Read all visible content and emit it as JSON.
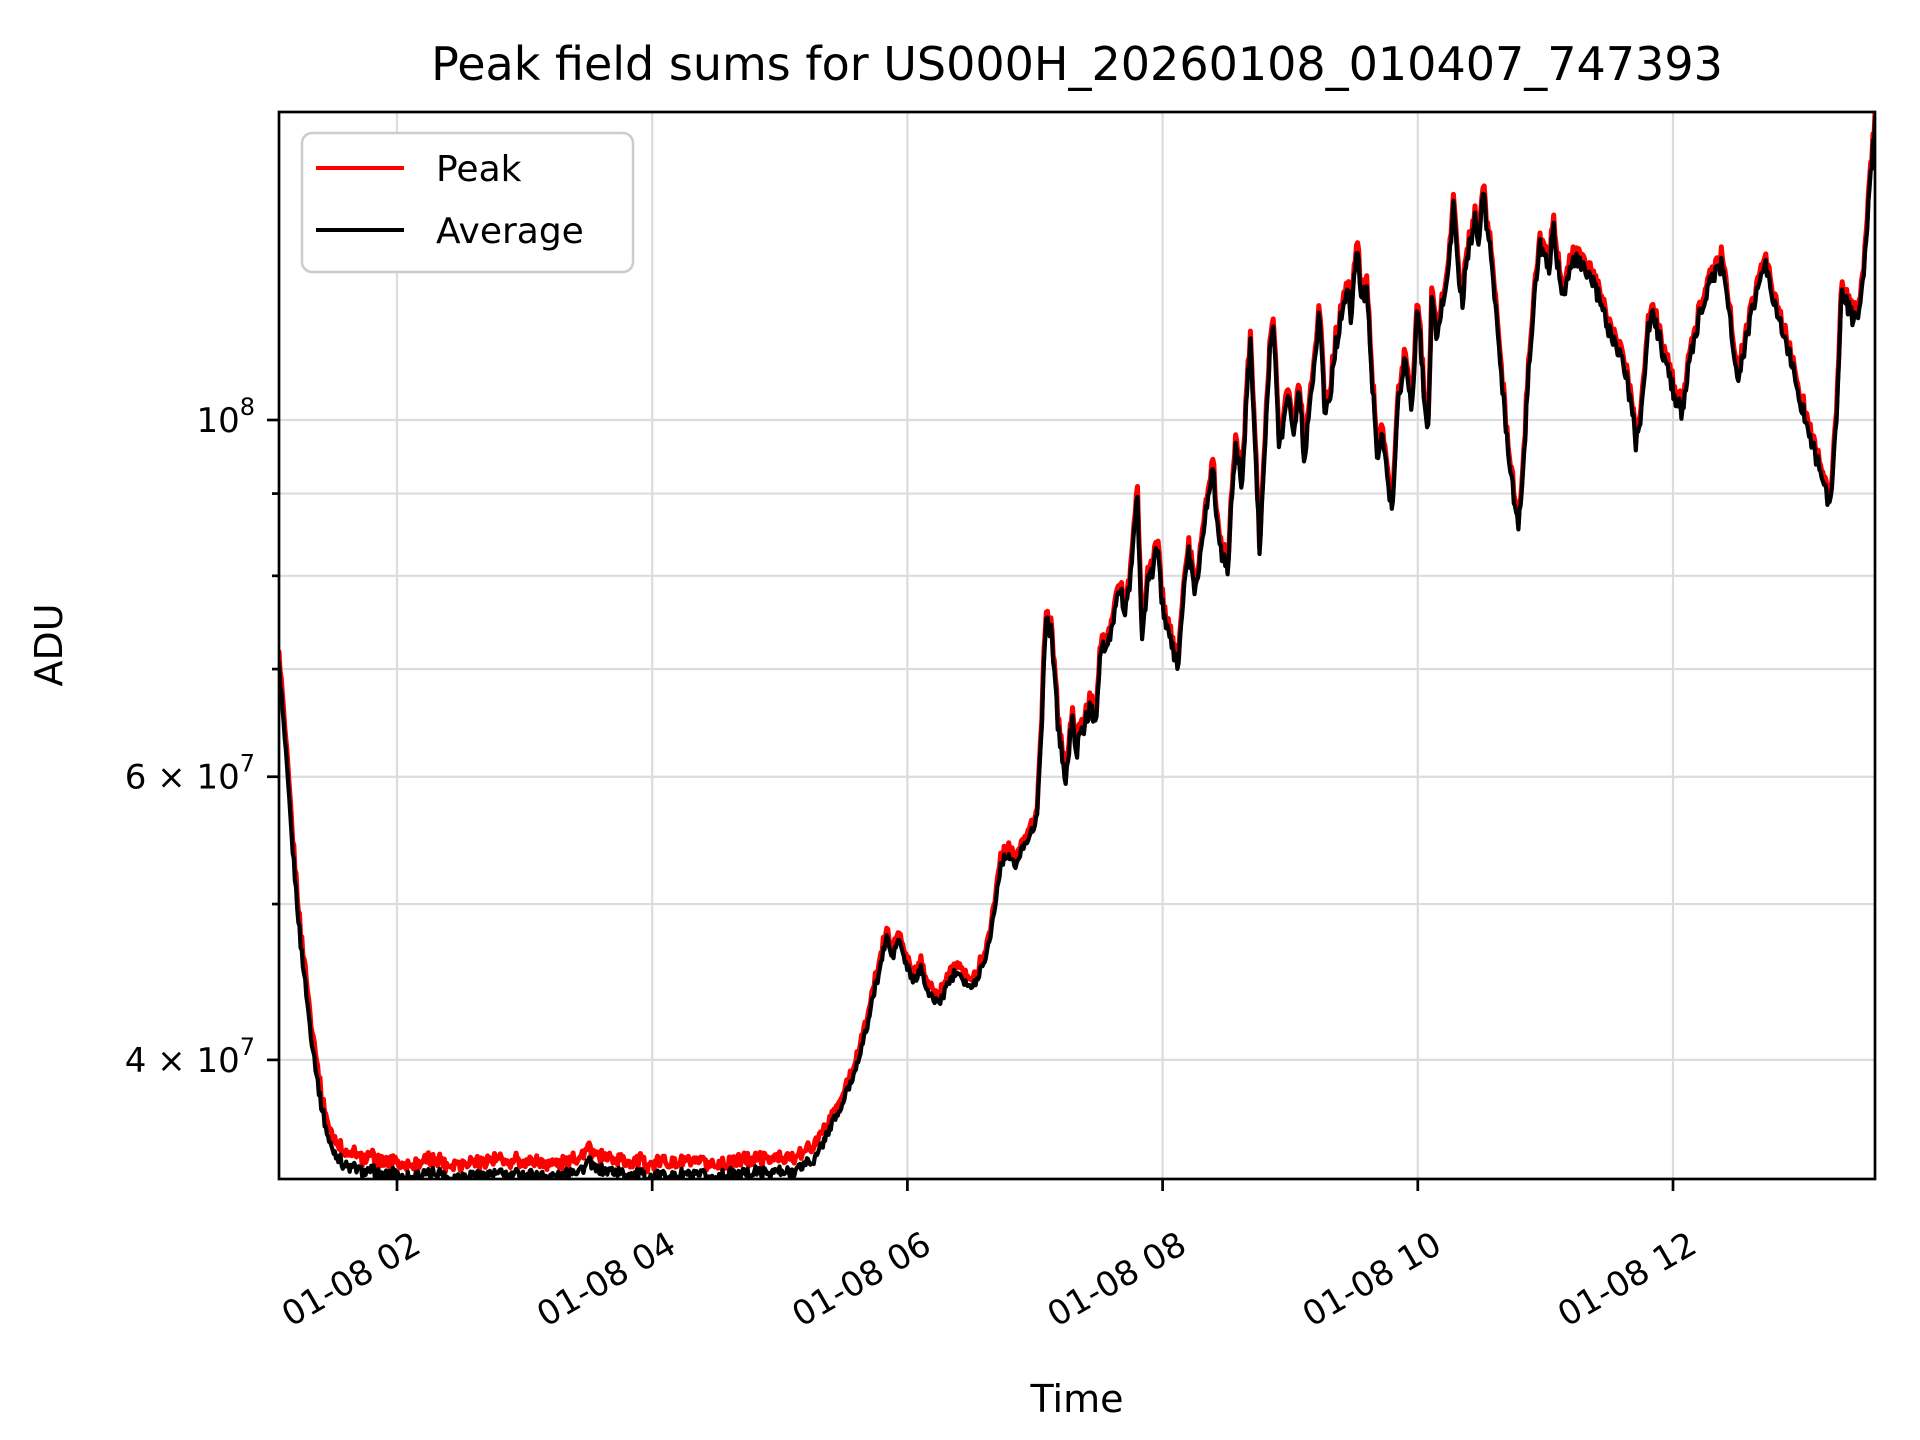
{
  "chart": {
    "title": "Peak field sums for US000H_20260108_010407_747393",
    "xlabel": "Time",
    "ylabel": "ADU",
    "colors": {
      "peak_line": "#ff0000",
      "average_line": "#000000",
      "grid": "#dcdcdc",
      "axes": "#000000",
      "legend_border": "#cccccc",
      "background": "#ffffff"
    },
    "legend": {
      "items": [
        {
          "label": "Peak",
          "color": "#ff0000"
        },
        {
          "label": "Average",
          "color": "#000000"
        }
      ]
    },
    "x_ticks": [
      {
        "t": 2,
        "label": "01-08 02"
      },
      {
        "t": 4,
        "label": "01-08 04"
      },
      {
        "t": 6,
        "label": "01-08 06"
      },
      {
        "t": 8,
        "label": "01-08 08"
      },
      {
        "t": 10,
        "label": "01-08 10"
      },
      {
        "t": 12,
        "label": "01-08 12"
      }
    ],
    "y_major_ticks": [
      {
        "v": 40000000,
        "base": "4 × 10",
        "exp": "7"
      },
      {
        "v": 60000000,
        "base": "6 × 10",
        "exp": "7"
      },
      {
        "v": 100000000,
        "base": "10",
        "exp": "8"
      }
    ],
    "y_minor_ticks": [
      50000000,
      70000000,
      80000000,
      90000000
    ]
  },
  "chart_data": {
    "type": "line",
    "title": "Peak field sums for US000H_20260108_010407_747393",
    "xlabel": "Time",
    "ylabel": "ADU",
    "yscale": "log",
    "xlim_hours": [
      1.075,
      13.585
    ],
    "ylim": [
      33700000,
      155000000
    ],
    "x_tick_hours": [
      2,
      4,
      6,
      8,
      10,
      12
    ],
    "x_tick_labels": [
      "01-08 02",
      "01-08 04",
      "01-08 06",
      "01-08 08",
      "01-08 10",
      "01-08 12"
    ],
    "grid": "both-y-major-x",
    "legend_position": "upper-left",
    "series": [
      {
        "name": "Peak",
        "color": "#ff0000",
        "relation": "average value plus roughly 1-3 percent, drawn beneath Average"
      },
      {
        "name": "Average",
        "color": "#000000",
        "units": "ADU, keypoint values are multiples of 1e7, t is hours on 01-08",
        "keypoints": [
          [
            1.075,
            7.05
          ],
          [
            1.12,
            6.35
          ],
          [
            1.18,
            5.45
          ],
          [
            1.25,
            4.7
          ],
          [
            1.32,
            4.2
          ],
          [
            1.4,
            3.78
          ],
          [
            1.48,
            3.55
          ],
          [
            1.58,
            3.46
          ],
          [
            1.7,
            3.43
          ],
          [
            1.9,
            3.41
          ],
          [
            2.1,
            3.4
          ],
          [
            2.3,
            3.41
          ],
          [
            2.5,
            3.4
          ],
          [
            2.7,
            3.41
          ],
          [
            2.9,
            3.4
          ],
          [
            3.1,
            3.41
          ],
          [
            3.3,
            3.41
          ],
          [
            3.5,
            3.46
          ],
          [
            3.6,
            3.43
          ],
          [
            3.8,
            3.4
          ],
          [
            4.0,
            3.4
          ],
          [
            4.25,
            3.41
          ],
          [
            4.5,
            3.4
          ],
          [
            4.75,
            3.41
          ],
          [
            5.0,
            3.42
          ],
          [
            5.15,
            3.44
          ],
          [
            5.28,
            3.5
          ],
          [
            5.38,
            3.6
          ],
          [
            5.48,
            3.74
          ],
          [
            5.58,
            3.92
          ],
          [
            5.68,
            4.18
          ],
          [
            5.78,
            4.55
          ],
          [
            5.84,
            4.77
          ],
          [
            5.88,
            4.62
          ],
          [
            5.93,
            4.76
          ],
          [
            5.99,
            4.57
          ],
          [
            6.05,
            4.47
          ],
          [
            6.11,
            4.56
          ],
          [
            6.17,
            4.4
          ],
          [
            6.24,
            4.33
          ],
          [
            6.31,
            4.44
          ],
          [
            6.38,
            4.56
          ],
          [
            6.44,
            4.49
          ],
          [
            6.5,
            4.43
          ],
          [
            6.56,
            4.52
          ],
          [
            6.62,
            4.65
          ],
          [
            6.68,
            4.95
          ],
          [
            6.73,
            5.28
          ],
          [
            6.79,
            5.37
          ],
          [
            6.85,
            5.26
          ],
          [
            6.91,
            5.44
          ],
          [
            6.97,
            5.55
          ],
          [
            7.01,
            5.62
          ],
          [
            7.05,
            6.45
          ],
          [
            7.09,
            7.5
          ],
          [
            7.13,
            7.4
          ],
          [
            7.18,
            6.45
          ],
          [
            7.24,
            5.93
          ],
          [
            7.29,
            6.52
          ],
          [
            7.33,
            6.25
          ],
          [
            7.38,
            6.45
          ],
          [
            7.43,
            6.62
          ],
          [
            7.48,
            6.55
          ],
          [
            7.52,
            7.25
          ],
          [
            7.56,
            7.12
          ],
          [
            7.61,
            7.45
          ],
          [
            7.66,
            7.88
          ],
          [
            7.71,
            7.62
          ],
          [
            7.76,
            8.1
          ],
          [
            7.8,
            9.1
          ],
          [
            7.84,
            7.28
          ],
          [
            7.88,
            7.85
          ],
          [
            7.92,
            8.05
          ],
          [
            7.95,
            8.42
          ],
          [
            7.99,
            7.75
          ],
          [
            8.03,
            7.38
          ],
          [
            8.08,
            7.18
          ],
          [
            8.12,
            7.02
          ],
          [
            8.16,
            7.7
          ],
          [
            8.2,
            8.32
          ],
          [
            8.25,
            7.85
          ],
          [
            8.3,
            8.3
          ],
          [
            8.35,
            8.9
          ],
          [
            8.39,
            9.42
          ],
          [
            8.43,
            8.6
          ],
          [
            8.47,
            8.25
          ],
          [
            8.51,
            8.05
          ],
          [
            8.55,
            9.2
          ],
          [
            8.58,
            9.72
          ],
          [
            8.62,
            9.1
          ],
          [
            8.66,
            10.4
          ],
          [
            8.69,
            11.3
          ],
          [
            8.72,
            9.8
          ],
          [
            8.76,
            8.35
          ],
          [
            8.8,
            9.6
          ],
          [
            8.84,
            11.0
          ],
          [
            8.87,
            11.5
          ],
          [
            8.91,
            9.7
          ],
          [
            8.95,
            10.0
          ],
          [
            8.99,
            10.45
          ],
          [
            9.03,
            9.65
          ],
          [
            9.07,
            10.55
          ],
          [
            9.11,
            9.4
          ],
          [
            9.15,
            10.2
          ],
          [
            9.19,
            10.9
          ],
          [
            9.23,
            11.7
          ],
          [
            9.27,
            10.1
          ],
          [
            9.31,
            10.3
          ],
          [
            9.36,
            11.1
          ],
          [
            9.41,
            11.7
          ],
          [
            9.45,
            12.0
          ],
          [
            9.48,
            11.5
          ],
          [
            9.52,
            12.9
          ],
          [
            9.56,
            11.95
          ],
          [
            9.6,
            12.1
          ],
          [
            9.64,
            10.6
          ],
          [
            9.68,
            9.45
          ],
          [
            9.72,
            9.9
          ],
          [
            9.76,
            9.2
          ],
          [
            9.8,
            8.85
          ],
          [
            9.85,
            10.4
          ],
          [
            9.9,
            10.9
          ],
          [
            9.95,
            10.1
          ],
          [
            10.0,
            11.8
          ],
          [
            10.04,
            10.6
          ],
          [
            10.08,
            9.65
          ],
          [
            10.11,
            11.95
          ],
          [
            10.15,
            11.1
          ],
          [
            10.19,
            11.8
          ],
          [
            10.24,
            12.4
          ],
          [
            10.28,
            13.55
          ],
          [
            10.32,
            12.3
          ],
          [
            10.35,
            11.9
          ],
          [
            10.4,
            12.75
          ],
          [
            10.45,
            13.3
          ],
          [
            10.48,
            12.9
          ],
          [
            10.51,
            13.95
          ],
          [
            10.55,
            13.0
          ],
          [
            10.59,
            12.4
          ],
          [
            10.63,
            11.2
          ],
          [
            10.67,
            10.3
          ],
          [
            10.71,
            9.6
          ],
          [
            10.75,
            8.95
          ],
          [
            10.79,
            8.55
          ],
          [
            10.83,
            9.5
          ],
          [
            10.87,
            10.8
          ],
          [
            10.91,
            11.9
          ],
          [
            10.96,
            12.85
          ],
          [
            11.0,
            12.5
          ],
          [
            11.03,
            12.3
          ],
          [
            11.06,
            13.2
          ],
          [
            11.1,
            12.4
          ],
          [
            11.14,
            12.05
          ],
          [
            11.18,
            12.3
          ],
          [
            11.23,
            12.55
          ],
          [
            11.28,
            12.45
          ],
          [
            11.33,
            12.4
          ],
          [
            11.38,
            12.15
          ],
          [
            11.44,
            11.75
          ],
          [
            11.5,
            11.4
          ],
          [
            11.56,
            11.1
          ],
          [
            11.61,
            10.85
          ],
          [
            11.66,
            10.3
          ],
          [
            11.71,
            9.7
          ],
          [
            11.76,
            10.3
          ],
          [
            11.81,
            11.4
          ],
          [
            11.85,
            11.7
          ],
          [
            11.9,
            11.15
          ],
          [
            11.96,
            10.7
          ],
          [
            12.02,
            10.3
          ],
          [
            12.07,
            10.1
          ],
          [
            12.13,
            10.9
          ],
          [
            12.2,
            11.5
          ],
          [
            12.28,
            12.1
          ],
          [
            12.34,
            12.4
          ],
          [
            12.38,
            12.5
          ],
          [
            12.44,
            11.7
          ],
          [
            12.5,
            10.6
          ],
          [
            12.55,
            10.9
          ],
          [
            12.61,
            11.6
          ],
          [
            12.67,
            12.2
          ],
          [
            12.72,
            12.45
          ],
          [
            12.78,
            11.95
          ],
          [
            12.84,
            11.5
          ],
          [
            12.91,
            11.0
          ],
          [
            12.98,
            10.4
          ],
          [
            13.05,
            10.0
          ],
          [
            13.12,
            9.5
          ],
          [
            13.18,
            9.15
          ],
          [
            13.23,
            8.8
          ],
          [
            13.28,
            10.0
          ],
          [
            13.32,
            11.9
          ],
          [
            13.37,
            11.7
          ],
          [
            13.42,
            11.55
          ],
          [
            13.47,
            11.8
          ],
          [
            13.51,
            12.9
          ],
          [
            13.55,
            14.2
          ],
          [
            13.585,
            15.45
          ]
        ]
      }
    ]
  }
}
